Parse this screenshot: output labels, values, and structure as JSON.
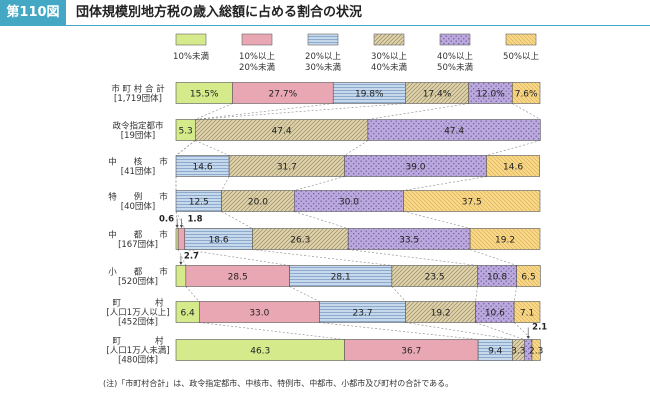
{
  "header": {
    "badge": "第110図",
    "title": "団体規模別地方税の歳入総額に占める割合の状況"
  },
  "note": "(注)「市町村合計」は、政令指定都市、中核市、特例市、中都市、小都市及び町村の合計である。",
  "colors": {
    "accent": "#44a8c4",
    "seg1": "#d5ea8a",
    "seg2": "#e9a7b3",
    "seg3": "#b3cce6",
    "seg4": "#d7c99c",
    "seg5": "#bba8dc",
    "seg6": "#f8d98b"
  },
  "chart_data": {
    "type": "bar",
    "orientation": "horizontal",
    "stacked": "percent",
    "xlim": [
      0,
      100
    ],
    "legend": {
      "placement": "top",
      "entries": [
        {
          "lines": [
            "10%未満"
          ]
        },
        {
          "lines": [
            "10%以上",
            "20%未満"
          ]
        },
        {
          "lines": [
            "20%以上",
            "30%未満"
          ]
        },
        {
          "lines": [
            "30%以上",
            "40%未満"
          ]
        },
        {
          "lines": [
            "40%以上",
            "50%未満"
          ]
        },
        {
          "lines": [
            "50%以上"
          ]
        }
      ]
    },
    "rows": [
      {
        "label": [
          "市 町 村 合 計",
          "[1,719団体]"
        ],
        "values": [
          15.5,
          27.7,
          19.8,
          17.4,
          12.0,
          7.6
        ],
        "labels": [
          "15.5%",
          "27.7%",
          "19.8%",
          "17.4%",
          "12.0%",
          "7.6%"
        ]
      },
      {
        "label": [
          "政令指定都市",
          "[19団体]"
        ],
        "values": [
          5.3,
          0,
          0,
          47.4,
          47.4,
          0
        ],
        "labels": [
          "5.3",
          "",
          "",
          "47.4",
          "47.4",
          ""
        ]
      },
      {
        "label": [
          "中　　核　　市",
          "[41団体]"
        ],
        "values": [
          0,
          0,
          14.6,
          31.7,
          39.0,
          14.6
        ],
        "labels": [
          "",
          "",
          "14.6",
          "31.7",
          "39.0",
          "14.6"
        ]
      },
      {
        "label": [
          "特　　例　　市",
          "[40団体]"
        ],
        "values": [
          0,
          0,
          12.5,
          20.0,
          30.0,
          37.5
        ],
        "labels": [
          "",
          "",
          "12.5",
          "20.0",
          "30.0",
          "37.5"
        ]
      },
      {
        "label": [
          "中　　都　　市",
          "[167団体]"
        ],
        "values": [
          0.6,
          1.8,
          18.6,
          26.3,
          33.5,
          19.2
        ],
        "labels": [
          "",
          "",
          "18.6",
          "26.3",
          "33.5",
          "19.2"
        ]
      },
      {
        "label": [
          "小　　都　　市",
          "[520団体]"
        ],
        "values": [
          2.7,
          28.5,
          28.1,
          23.5,
          10.8,
          6.5
        ],
        "labels": [
          "",
          "28.5",
          "28.1",
          "23.5",
          "10.8",
          "6.5"
        ]
      },
      {
        "label": [
          "町　　　　村",
          "[人口1万人以上]",
          "[452団体]"
        ],
        "values": [
          6.4,
          33.0,
          23.7,
          19.2,
          10.6,
          7.1
        ],
        "labels": [
          "6.4",
          "33.0",
          "23.7",
          "19.2",
          "10.6",
          "7.1"
        ]
      },
      {
        "label": [
          "町　　　　村",
          "[人口1万人未満]",
          "[480団体]"
        ],
        "values": [
          46.3,
          36.7,
          9.4,
          3.3,
          2.1,
          2.3
        ],
        "labels": [
          "46.3",
          "36.7",
          "9.4",
          "3.3",
          "",
          "2.3"
        ]
      }
    ],
    "callouts": [
      {
        "row": 4,
        "segment": 0,
        "text": "0.6"
      },
      {
        "row": 4,
        "segment": 1,
        "text": "1.8"
      },
      {
        "row": 5,
        "segment": 0,
        "text": "2.7"
      },
      {
        "row": 7,
        "segment": 4,
        "text": "2.1"
      }
    ]
  }
}
